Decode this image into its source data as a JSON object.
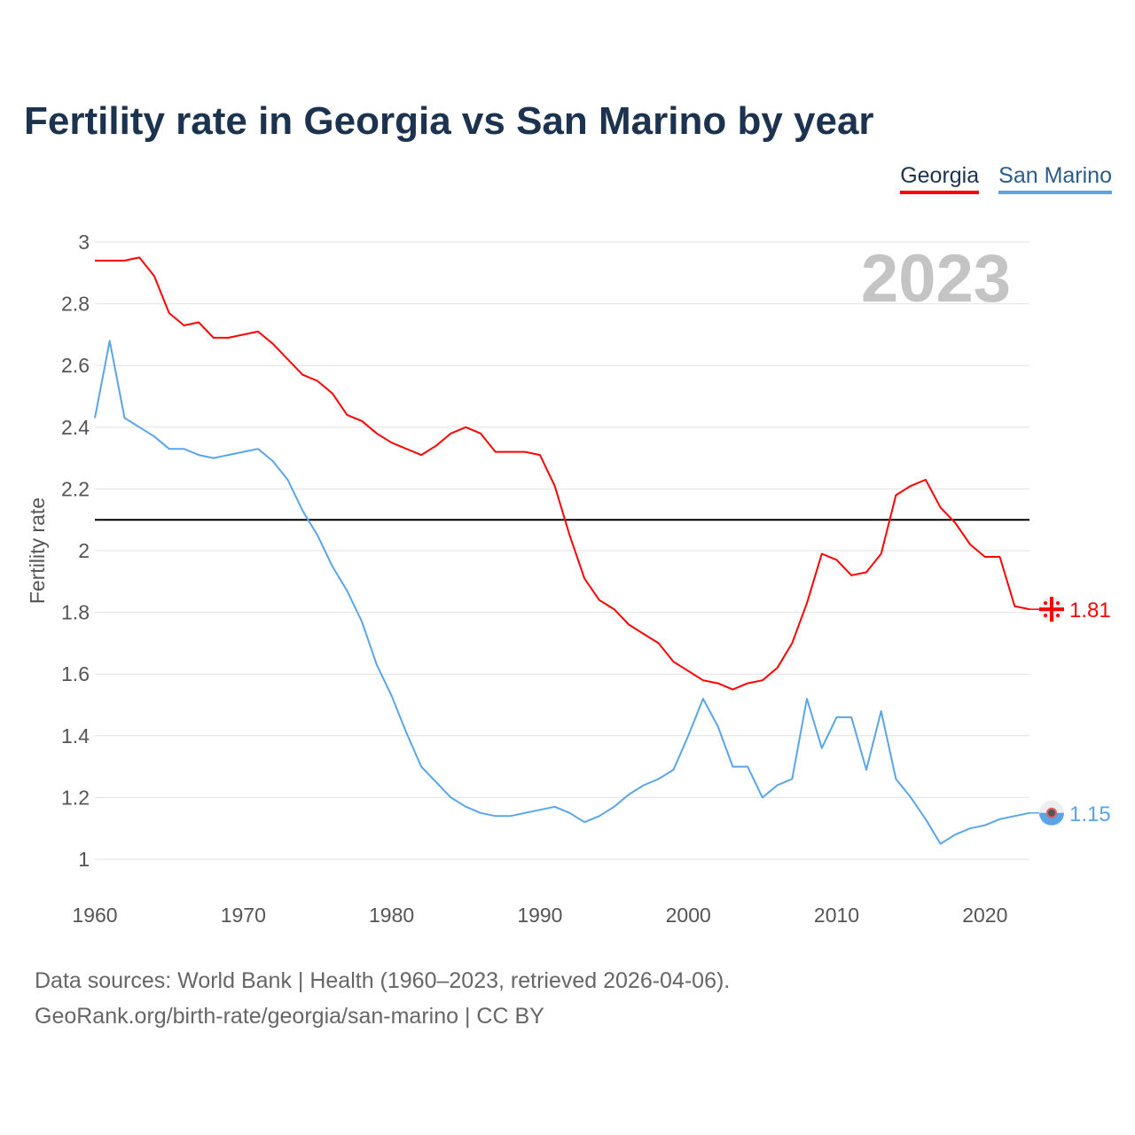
{
  "title": "Fertility rate in Georgia vs San Marino by year",
  "year_badge": "2023",
  "footer": {
    "line1": "Data sources: World Bank | Health (1960–2023, retrieved 2026-04-06).",
    "line2": "GeoRank.org/birth-rate/georgia/san-marino | CC BY"
  },
  "chart_data": {
    "type": "line",
    "title": "Fertility rate in Georgia vs San Marino by year",
    "xlabel": "",
    "ylabel": "Fertility rate",
    "xlim": [
      1960,
      2023
    ],
    "ylim": [
      1,
      3
    ],
    "x_ticks": [
      "1960",
      "1970",
      "1980",
      "1990",
      "2000",
      "2010",
      "2020"
    ],
    "y_ticks": [
      "1",
      "1.2",
      "1.4",
      "1.6",
      "1.8",
      "2",
      "2.2",
      "2.4",
      "2.6",
      "2.8",
      "3"
    ],
    "grid": true,
    "legend_placement": "top-right",
    "reference_line": 2.1,
    "x": [
      1960,
      1961,
      1962,
      1963,
      1964,
      1965,
      1966,
      1967,
      1968,
      1969,
      1970,
      1971,
      1972,
      1973,
      1974,
      1975,
      1976,
      1977,
      1978,
      1979,
      1980,
      1981,
      1982,
      1983,
      1984,
      1985,
      1986,
      1987,
      1988,
      1989,
      1990,
      1991,
      1992,
      1993,
      1994,
      1995,
      1996,
      1997,
      1998,
      1999,
      2000,
      2001,
      2002,
      2003,
      2004,
      2005,
      2006,
      2007,
      2008,
      2009,
      2010,
      2011,
      2012,
      2013,
      2014,
      2015,
      2016,
      2017,
      2018,
      2019,
      2020,
      2021,
      2022,
      2023
    ],
    "series": [
      {
        "name": "Georgia",
        "color": "#ff0000",
        "end_label": "1.81",
        "icon": "georgia-flag-icon",
        "values": [
          2.94,
          2.94,
          2.94,
          2.95,
          2.89,
          2.77,
          2.73,
          2.74,
          2.69,
          2.69,
          2.7,
          2.71,
          2.67,
          2.62,
          2.57,
          2.55,
          2.51,
          2.44,
          2.42,
          2.38,
          2.35,
          2.33,
          2.31,
          2.34,
          2.38,
          2.4,
          2.38,
          2.32,
          2.32,
          2.32,
          2.31,
          2.21,
          2.05,
          1.91,
          1.84,
          1.81,
          1.76,
          1.73,
          1.7,
          1.64,
          1.61,
          1.58,
          1.57,
          1.55,
          1.57,
          1.58,
          1.62,
          1.7,
          1.83,
          1.99,
          1.97,
          1.92,
          1.93,
          1.99,
          2.18,
          2.21,
          2.23,
          2.14,
          2.09,
          2.02,
          1.98,
          1.98,
          1.82,
          1.81
        ]
      },
      {
        "name": "San Marino",
        "color": "#5aa5ea",
        "end_label": "1.15",
        "icon": "san-marino-flag-icon",
        "values": [
          2.43,
          2.68,
          2.43,
          2.4,
          2.37,
          2.33,
          2.33,
          2.31,
          2.3,
          2.31,
          2.32,
          2.33,
          2.29,
          2.23,
          2.13,
          2.05,
          1.95,
          1.87,
          1.77,
          1.63,
          1.53,
          1.41,
          1.3,
          1.25,
          1.2,
          1.17,
          1.15,
          1.14,
          1.14,
          1.15,
          1.16,
          1.17,
          1.15,
          1.12,
          1.14,
          1.17,
          1.21,
          1.24,
          1.26,
          1.29,
          1.4,
          1.52,
          1.43,
          1.3,
          1.3,
          1.2,
          1.24,
          1.26,
          1.52,
          1.36,
          1.46,
          1.46,
          1.29,
          1.48,
          1.26,
          1.2,
          1.13,
          1.05,
          1.08,
          1.1,
          1.11,
          1.13,
          1.14,
          1.15
        ]
      }
    ]
  }
}
